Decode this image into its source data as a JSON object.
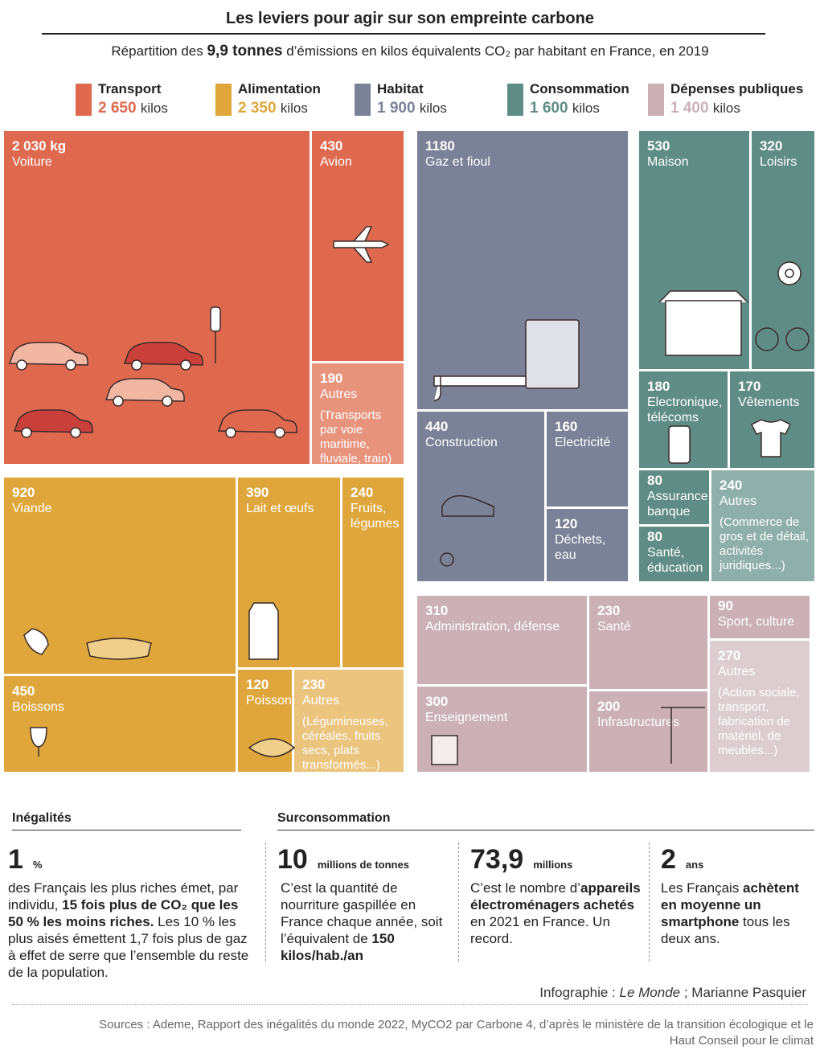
{
  "header": {
    "title": "Les leviers pour agir sur son empreinte carbone",
    "subtitle": [
      {
        "text": "Répartition des ",
        "bold": false
      },
      {
        "text": "9,9 tonnes",
        "bold": true
      },
      {
        "text": " d’émissions en kilos équivalents CO₂ par habitant en France, en 2019",
        "bold": false
      }
    ]
  },
  "legend": [
    {
      "name": "Transport",
      "value": "2 650",
      "unit": "kilos",
      "color": "#df694e"
    },
    {
      "name": "Alimentation",
      "value": "2 350",
      "unit": "kilos",
      "color": "#dfa73b"
    },
    {
      "name": "Habitat",
      "value": "1 900",
      "unit": "kilos",
      "color": "#7b8297"
    },
    {
      "name": "Consommation",
      "value": "1 600",
      "unit": "kilos",
      "color": "#5f8d85"
    },
    {
      "name": "Dépenses publiques",
      "value": "1 400",
      "unit": "kilos",
      "color": "#cbb0b6"
    }
  ],
  "tiles": [
    {
      "value": "2 030 kg",
      "label": "Voiture",
      "color": "#df694e"
    },
    {
      "value": 430,
      "label": "Avion",
      "color": "#df694e"
    },
    {
      "value": 190,
      "label": "Autres",
      "note": "(Transports par voie maritime, fluviale, train)",
      "color": "#e8947c"
    },
    {
      "value": 920,
      "label": "Viande",
      "color": "#dfa73b"
    },
    {
      "value": 390,
      "label": "Lait et œufs",
      "color": "#dfa73b"
    },
    {
      "value": 240,
      "label": "Fruits, légumes",
      "color": "#dfa73b"
    },
    {
      "value": 450,
      "label": "Boissons",
      "color": "#dfa73b"
    },
    {
      "value": 120,
      "label": "Poisson",
      "color": "#dfa73b"
    },
    {
      "value": 230,
      "label": "Autres",
      "note": "(Légumineuses, céréales, fruits secs, plats transformés...)",
      "color": "#ebc47e"
    },
    {
      "value": 1180,
      "label": "Gaz et fioul",
      "color": "#7b8297"
    },
    {
      "value": 440,
      "label": "Construction",
      "color": "#7b8297"
    },
    {
      "value": 160,
      "label": "Electricité",
      "color": "#7b8297"
    },
    {
      "value": 120,
      "label": "Déchets, eau",
      "color": "#7b8297"
    },
    {
      "value": 530,
      "label": "Maison",
      "color": "#5f8d85"
    },
    {
      "value": 320,
      "label": "Loisirs",
      "color": "#5f8d85"
    },
    {
      "value": 180,
      "label": "Electronique, télécoms",
      "color": "#5f8d85"
    },
    {
      "value": 170,
      "label": "Vêtements",
      "color": "#5f8d85"
    },
    {
      "value": 80,
      "label": "Assurance, banque",
      "color": "#5f8d85"
    },
    {
      "value": 80,
      "label": "Santé, éducation",
      "color": "#5f8d85"
    },
    {
      "value": 240,
      "label": "Autres",
      "note": "(Commerce de gros et de détail, activités juridiques...)",
      "color": "#8fb0aa"
    },
    {
      "value": 310,
      "label": "Administration, défense",
      "color": "#cbb0b6"
    },
    {
      "value": 300,
      "label": "Enseignement",
      "color": "#cbb0b6"
    },
    {
      "value": 230,
      "label": "Santé",
      "color": "#cbb0b6"
    },
    {
      "value": 200,
      "label": "Infrastructures",
      "color": "#cbb0b6"
    },
    {
      "value": 90,
      "label": "Sport, culture",
      "color": "#cbb0b6"
    },
    {
      "value": 270,
      "label": "Autres",
      "note": "(Action sociale, transport, fabrication de matériel, de meubles...)",
      "color": "#dccdd0"
    }
  ],
  "sections": [
    {
      "title": "Inégalités"
    },
    {
      "title": "Surconsommation"
    }
  ],
  "stats": [
    {
      "figure": 1,
      "unit": "%",
      "text": [
        {
          "text": "des Français les plus riches émet, par individu, ",
          "bold": false
        },
        {
          "text": "15 fois plus de CO₂ que les 50 % les moins riches.",
          "bold": true
        },
        {
          "text": " Les 10 % les plus aisés émettent 1,7 fois plus de gaz à effet de serre que l’ensemble du reste de la population.",
          "bold": false
        }
      ]
    },
    {
      "figure": 10,
      "unit": "millions de tonnes",
      "text": [
        {
          "text": "C’est la quantité de nourriture gaspillée en France chaque année, soit l’équivalent de ",
          "bold": false
        },
        {
          "text": "150 kilos/hab./an",
          "bold": true
        }
      ]
    },
    {
      "figure": "73,9",
      "unit": "millions",
      "text": [
        {
          "text": "C’est le nombre d’",
          "bold": false
        },
        {
          "text": "appareils électroménagers achetés",
          "bold": true
        },
        {
          "text": " en 2021 en France. Un record.",
          "bold": false
        }
      ]
    },
    {
      "figure": 2,
      "unit": "ans",
      "text": [
        {
          "text": "Les Français ",
          "bold": false
        },
        {
          "text": "achètent en moyenne un smartphone",
          "bold": true
        },
        {
          "text": " tous les deux ans.",
          "bold": false
        }
      ]
    }
  ],
  "credit": [
    {
      "text": "Infographie : ",
      "italic": false
    },
    {
      "text": "Le Monde",
      "italic": true
    },
    {
      "text": " ; Marianne Pasquier",
      "italic": false
    }
  ],
  "sources": "Sources : Ademe, Rapport des inégalités du monde 2022, MyCO2 par Carbone 4, d’après le ministère de la transition écologique et le Haut Conseil pour le climat"
}
